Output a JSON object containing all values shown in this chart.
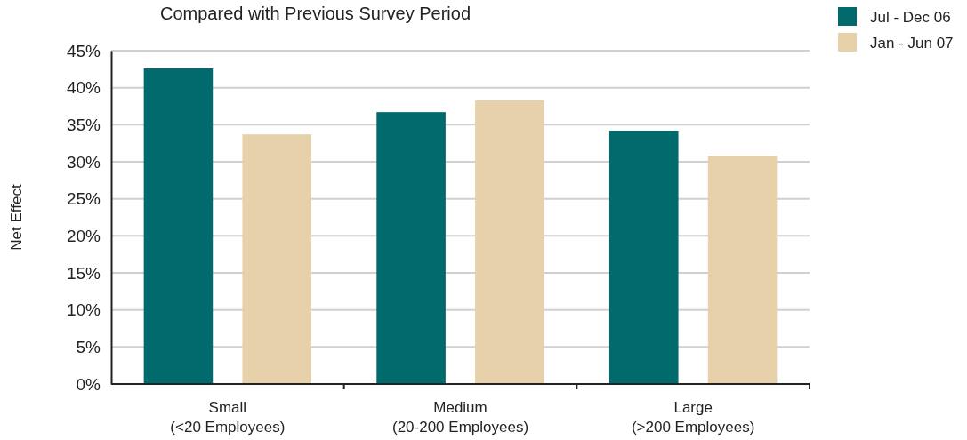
{
  "chart_data": {
    "type": "bar",
    "title": "Compared with Previous Survey Period",
    "ylabel": "Net Effect",
    "categories": [
      "Small\n(<20 Employees)",
      "Medium\n(20-200 Employees)",
      "Large\n(>200 Employees)"
    ],
    "series": [
      {
        "name": "Jul - Dec 06",
        "color": "#006a6c",
        "values": [
          42.6,
          36.7,
          34.2
        ]
      },
      {
        "name": "Jan - Jun 07",
        "color": "#e7d1aa",
        "values": [
          33.7,
          38.3,
          30.8
        ]
      }
    ],
    "ylim": [
      0,
      45
    ],
    "yticks": [
      {
        "value": 0,
        "label": "0%"
      },
      {
        "value": 5,
        "label": "5%"
      },
      {
        "value": 10,
        "label": "10%"
      },
      {
        "value": 15,
        "label": "15%"
      },
      {
        "value": 20,
        "label": "20%"
      },
      {
        "value": 25,
        "label": "25%"
      },
      {
        "value": 30,
        "label": "30%"
      },
      {
        "value": 35,
        "label": "35%"
      },
      {
        "value": 40,
        "label": "40%"
      },
      {
        "value": 45,
        "label": "45%"
      }
    ],
    "grid": "y",
    "legend": "top right"
  }
}
